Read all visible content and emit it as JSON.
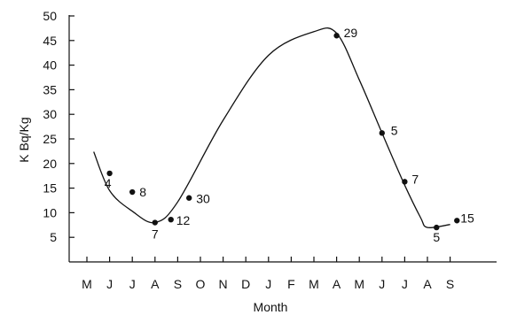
{
  "chart_data": {
    "type": "scatter",
    "title": "",
    "xlabel": "Month",
    "ylabel": "K Bq/Kg",
    "ylim": [
      0,
      50
    ],
    "y_ticks": [
      5,
      10,
      15,
      20,
      25,
      30,
      35,
      40,
      45,
      50
    ],
    "x_ticks": [
      "M",
      "J",
      "J",
      "A",
      "S",
      "O",
      "N",
      "D",
      "J",
      "F",
      "M",
      "A",
      "M",
      "J",
      "J",
      "A",
      "S"
    ],
    "grid": false,
    "legend": "none",
    "points": [
      {
        "x": "J",
        "y": 18,
        "label": "4"
      },
      {
        "x": "J",
        "y": 14.2,
        "label": "8"
      },
      {
        "x": "A",
        "y": 8,
        "label": "7"
      },
      {
        "x": "A",
        "y": 8.6,
        "label": "12"
      },
      {
        "x": "S",
        "y": 13,
        "label": "30"
      },
      {
        "x": "A",
        "y": 46,
        "label": "29"
      },
      {
        "x": "J",
        "y": 26.2,
        "label": "5"
      },
      {
        "x": "J",
        "y": 16.3,
        "label": "7"
      },
      {
        "x": "A",
        "y": 7,
        "label": "5"
      },
      {
        "x": "S",
        "y": 8.4,
        "label": "15"
      }
    ],
    "trend_curve": {
      "x": [
        0.3,
        1.0,
        2.0,
        3.0,
        4.0,
        6.0,
        8.0,
        10.0,
        11.0,
        12.0,
        13.0,
        14.0,
        14.7,
        15.0,
        16.0
      ],
      "y": [
        22.4,
        14.5,
        10.3,
        8.0,
        12.2,
        28.8,
        42.0,
        46.8,
        46.5,
        37.0,
        26.2,
        15.6,
        9.0,
        7.0,
        7.6
      ]
    }
  }
}
